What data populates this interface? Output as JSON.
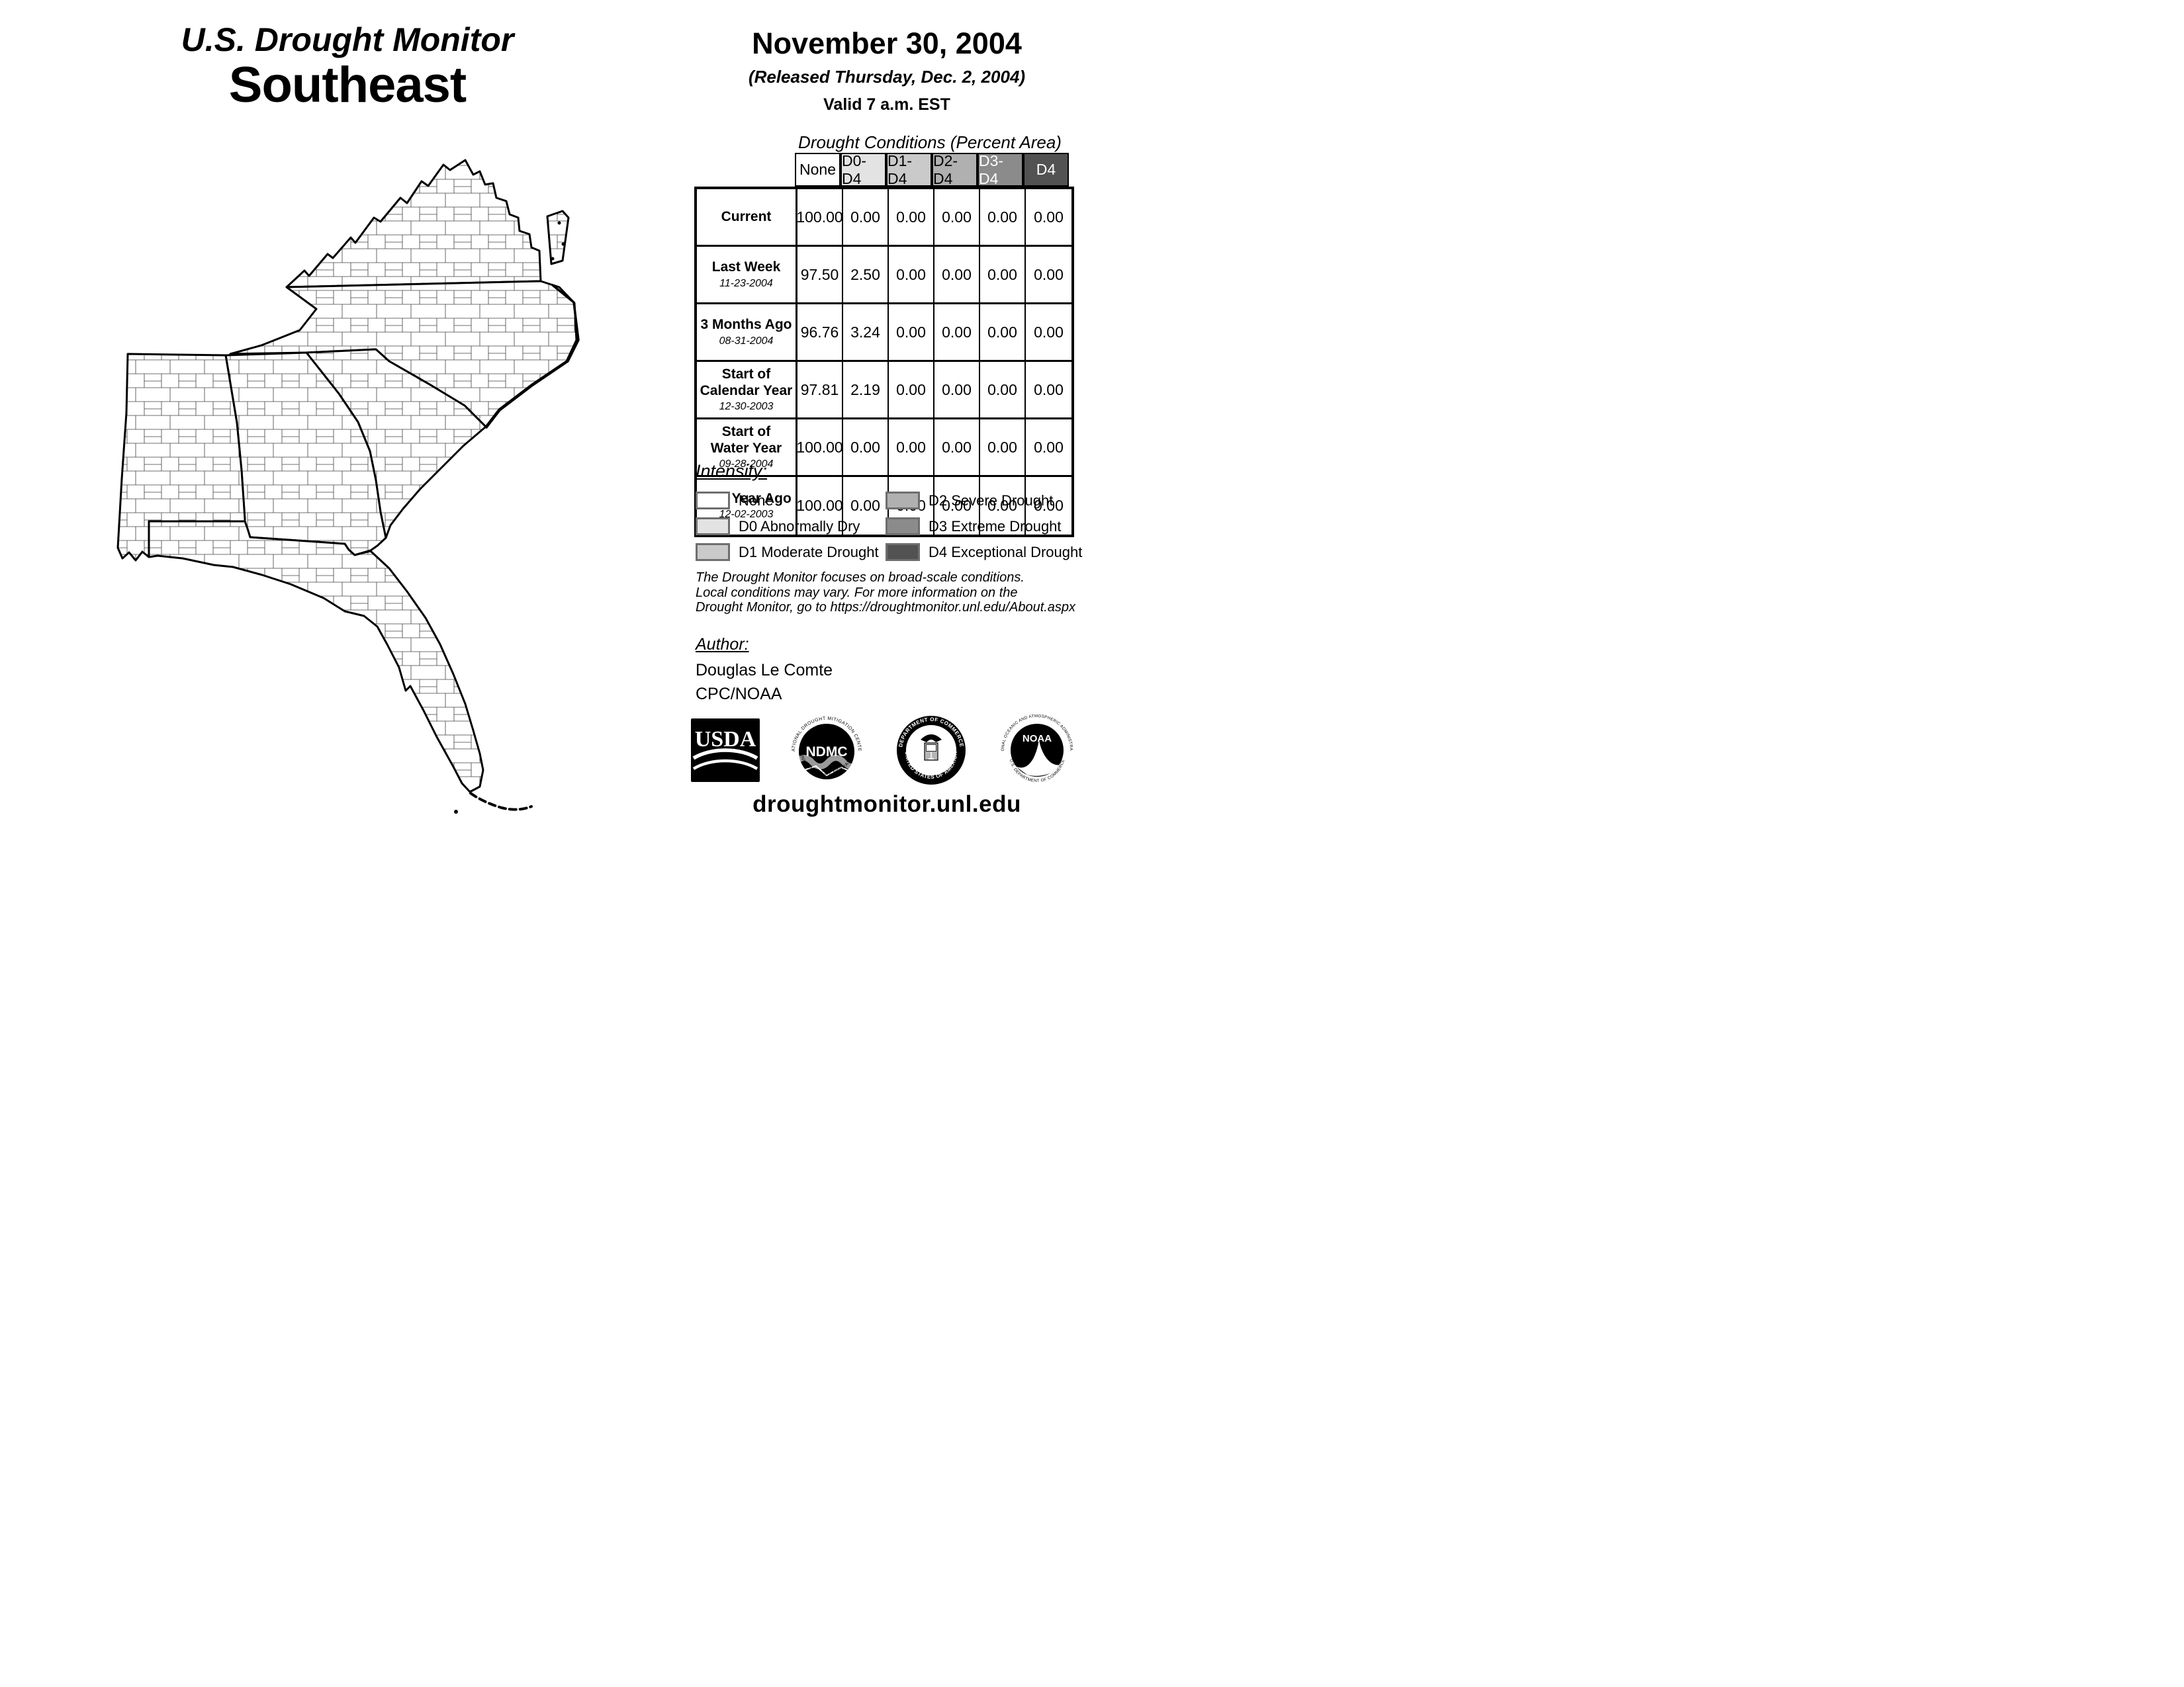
{
  "header": {
    "title": "U.S. Drought Monitor",
    "region": "Southeast",
    "date": "November 30, 2004",
    "released": "(Released Thursday, Dec. 2, 2004)",
    "valid": "Valid 7 a.m. EST"
  },
  "table": {
    "title": "Drought Conditions (Percent Area)",
    "columns": [
      "None",
      "D0-D4",
      "D1-D4",
      "D2-D4",
      "D3-D4",
      "D4"
    ],
    "column_colors": [
      "#ffffff",
      "#e3e3e3",
      "#cacaca",
      "#b0b0b0",
      "#8b8b8b",
      "#525252"
    ],
    "column_text_colors": [
      "#000000",
      "#000000",
      "#000000",
      "#000000",
      "#ffffff",
      "#ffffff"
    ],
    "rows": [
      {
        "label": [
          "Current"
        ],
        "date": "",
        "values": [
          "100.00",
          "0.00",
          "0.00",
          "0.00",
          "0.00",
          "0.00"
        ]
      },
      {
        "label": [
          "Last Week"
        ],
        "date": "11-23-2004",
        "values": [
          "97.50",
          "2.50",
          "0.00",
          "0.00",
          "0.00",
          "0.00"
        ]
      },
      {
        "label": [
          "3 Months Ago"
        ],
        "date": "08-31-2004",
        "values": [
          "96.76",
          "3.24",
          "0.00",
          "0.00",
          "0.00",
          "0.00"
        ]
      },
      {
        "label": [
          "Start of",
          "Calendar Year"
        ],
        "date": "12-30-2003",
        "values": [
          "97.81",
          "2.19",
          "0.00",
          "0.00",
          "0.00",
          "0.00"
        ]
      },
      {
        "label": [
          "Start of",
          "Water Year"
        ],
        "date": "09-28-2004",
        "values": [
          "100.00",
          "0.00",
          "0.00",
          "0.00",
          "0.00",
          "0.00"
        ]
      },
      {
        "label": [
          "One Year Ago"
        ],
        "date": "12-02-2003",
        "values": [
          "100.00",
          "0.00",
          "0.00",
          "0.00",
          "0.00",
          "0.00"
        ]
      }
    ]
  },
  "legend": {
    "heading": "Intensity:",
    "swatch_border": "#6e6e6e",
    "items": [
      {
        "label": "None",
        "color": "#ffffff"
      },
      {
        "label": "D0 Abnormally Dry",
        "color": "#e3e3e3"
      },
      {
        "label": "D1 Moderate Drought",
        "color": "#cacaca"
      },
      {
        "label": "D2 Severe Drought",
        "color": "#b0b0b0"
      },
      {
        "label": "D3 Extreme Drought",
        "color": "#8b8b8b"
      },
      {
        "label": "D4 Exceptional Drought",
        "color": "#525252"
      }
    ]
  },
  "disclaimer": {
    "lines": [
      "The Drought Monitor focuses on broad-scale conditions.",
      "Local conditions may vary. For more information on the",
      "Drought Monitor, go to https://droughtmonitor.unl.edu/About.aspx"
    ]
  },
  "author": {
    "heading": "Author:",
    "name": "Douglas Le Comte",
    "org": "CPC/NOAA"
  },
  "logos": [
    {
      "name": "usda",
      "text": "USDA"
    },
    {
      "name": "ndmc",
      "text": "NDMC",
      "ring_top": "NATIONAL DROUGHT MITIGATION CENTER",
      "ring_bottom": "UNIVERSITY OF NEBRASKA"
    },
    {
      "name": "commerce",
      "ring_top": "DEPARTMENT OF COMMERCE",
      "ring_bottom": "UNITED STATES OF AMERICA"
    },
    {
      "name": "noaa",
      "text": "NOAA",
      "ring_top": "NATIONAL OCEANIC AND ATMOSPHERIC ADMINISTRATION",
      "ring_bottom": "U.S. DEPARTMENT OF COMMERCE"
    }
  ],
  "footer": {
    "website": "droughtmonitor.unl.edu"
  },
  "map": {
    "region": "Southeast",
    "states": [
      "Virginia",
      "North Carolina",
      "South Carolina",
      "Georgia",
      "Alabama",
      "Florida"
    ]
  }
}
